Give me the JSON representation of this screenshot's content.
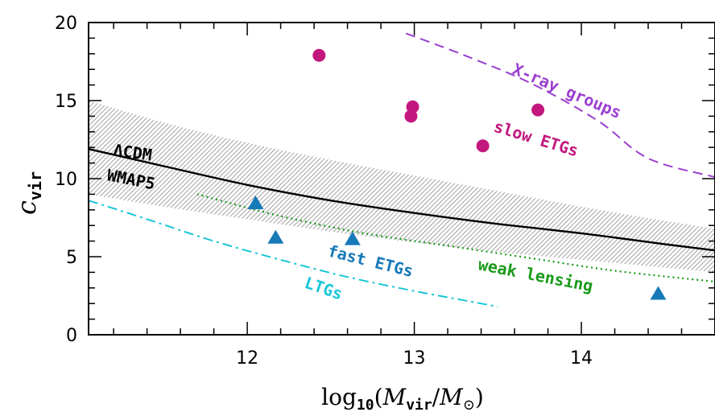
{
  "chart_data": {
    "type": "scatter",
    "xlabel_main": "log",
    "xlabel_sub10": "10",
    "xlabel_open": "(",
    "xlabel_M1": "M",
    "xlabel_vir": "vir",
    "xlabel_slash": "/",
    "xlabel_M2": "M",
    "xlabel_sun": "⊙",
    "xlabel_close": ")",
    "ylabel_main": "c",
    "ylabel_sub": "vir",
    "xlim": [
      11.05,
      14.8
    ],
    "ylim": [
      0,
      20
    ],
    "x_ticks": [
      12,
      13,
      14
    ],
    "y_ticks": [
      0,
      5,
      10,
      15,
      20
    ],
    "colors": {
      "slow": "#c2187e",
      "fast": "#1679b8",
      "xray": "#9b3fd0",
      "weak": "#1a9a1a",
      "ltg": "#19c7d8",
      "lcdm": "#000000",
      "band": "#9a9a9a"
    },
    "labels": {
      "lcdm": "ΛCDM",
      "wmap": "WMAP5",
      "xray": "X-ray groups",
      "slow": "slow ETGs",
      "fast": "fast ETGs",
      "weak": "weak lensing",
      "ltg": "LTGs"
    },
    "slow_etgs": [
      {
        "x": 12.43,
        "y": 17.9
      },
      {
        "x": 12.99,
        "y": 14.6
      },
      {
        "x": 12.98,
        "y": 14.0
      },
      {
        "x": 13.41,
        "y": 12.1
      },
      {
        "x": 13.74,
        "y": 14.4
      }
    ],
    "fast_etgs": [
      {
        "x": 12.05,
        "y": 8.4
      },
      {
        "x": 12.17,
        "y": 6.2
      },
      {
        "x": 12.63,
        "y": 6.1
      },
      {
        "x": 14.46,
        "y": 2.6
      }
    ],
    "lcdm_curve": [
      {
        "x": 11.05,
        "y": 11.9
      },
      {
        "x": 11.5,
        "y": 10.8
      },
      {
        "x": 12.0,
        "y": 9.6
      },
      {
        "x": 12.5,
        "y": 8.6
      },
      {
        "x": 13.0,
        "y": 7.8
      },
      {
        "x": 13.5,
        "y": 7.1
      },
      {
        "x": 14.0,
        "y": 6.5
      },
      {
        "x": 14.5,
        "y": 5.8
      },
      {
        "x": 14.8,
        "y": 5.4
      }
    ],
    "lcdm_band_upper": [
      {
        "x": 11.05,
        "y": 15.0
      },
      {
        "x": 11.5,
        "y": 13.6
      },
      {
        "x": 12.0,
        "y": 12.3
      },
      {
        "x": 12.5,
        "y": 11.2
      },
      {
        "x": 13.0,
        "y": 10.2
      },
      {
        "x": 13.5,
        "y": 9.2
      },
      {
        "x": 14.0,
        "y": 8.2
      },
      {
        "x": 14.5,
        "y": 7.3
      },
      {
        "x": 14.8,
        "y": 6.8
      }
    ],
    "lcdm_band_lower": [
      {
        "x": 11.05,
        "y": 9.0
      },
      {
        "x": 11.5,
        "y": 8.2
      },
      {
        "x": 12.0,
        "y": 7.4
      },
      {
        "x": 12.5,
        "y": 6.6
      },
      {
        "x": 13.0,
        "y": 5.9
      },
      {
        "x": 13.5,
        "y": 5.3
      },
      {
        "x": 14.0,
        "y": 4.8
      },
      {
        "x": 14.5,
        "y": 4.3
      },
      {
        "x": 14.8,
        "y": 4.0
      }
    ],
    "xray_groups": [
      {
        "x": 12.95,
        "y": 19.3
      },
      {
        "x": 13.3,
        "y": 17.9
      },
      {
        "x": 13.7,
        "y": 16.1
      },
      {
        "x": 14.1,
        "y": 13.7
      },
      {
        "x": 14.4,
        "y": 11.3
      },
      {
        "x": 14.8,
        "y": 10.1
      }
    ],
    "weak_lensing": [
      {
        "x": 11.7,
        "y": 9.0
      },
      {
        "x": 12.2,
        "y": 7.6
      },
      {
        "x": 12.7,
        "y": 6.5
      },
      {
        "x": 13.2,
        "y": 5.7
      },
      {
        "x": 13.7,
        "y": 4.9
      },
      {
        "x": 14.2,
        "y": 4.1
      },
      {
        "x": 14.8,
        "y": 3.4
      }
    ],
    "ltgs": [
      {
        "x": 11.05,
        "y": 8.6
      },
      {
        "x": 11.4,
        "y": 7.4
      },
      {
        "x": 11.8,
        "y": 6.0
      },
      {
        "x": 12.2,
        "y": 4.8
      },
      {
        "x": 12.6,
        "y": 3.7
      },
      {
        "x": 13.0,
        "y": 2.8
      },
      {
        "x": 13.3,
        "y": 2.2
      },
      {
        "x": 13.5,
        "y": 1.8
      }
    ]
  }
}
